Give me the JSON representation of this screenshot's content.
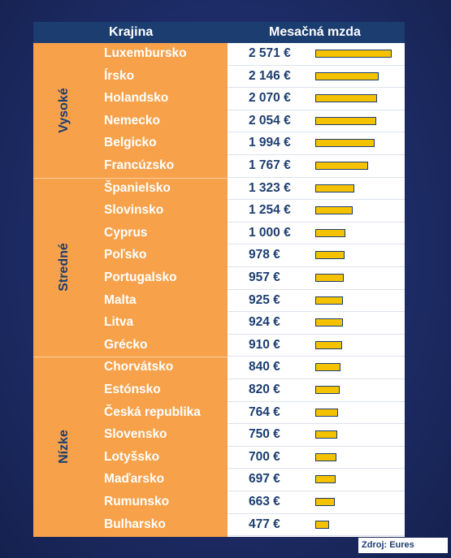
{
  "header": {
    "country_col": "Krajina",
    "wage_col": "Mesačná mzda"
  },
  "source": "Zdroj: Eures",
  "colors": {
    "header": "#1c3d70",
    "label_band": "#f7a24b",
    "bar_fill": "#f5c200",
    "bar_border": "#1c3d70"
  },
  "chart_data": {
    "type": "bar",
    "orientation": "horizontal",
    "unit": "€",
    "groups": [
      {
        "label": "Vysoké",
        "rows": [
          {
            "country": "Luxembursko",
            "wage_text": "2 571 €",
            "value": 2571
          },
          {
            "country": "Írsko",
            "wage_text": "2 146 €",
            "value": 2146
          },
          {
            "country": "Holandsko",
            "wage_text": "2 070 €",
            "value": 2070
          },
          {
            "country": "Nemecko",
            "wage_text": "2 054 €",
            "value": 2054
          },
          {
            "country": "Belgicko",
            "wage_text": "1 994 €",
            "value": 1994
          },
          {
            "country": "Francúzsko",
            "wage_text": "1 767 €",
            "value": 1767
          }
        ]
      },
      {
        "label": "Stredné",
        "rows": [
          {
            "country": "Španielsko",
            "wage_text": "1 323 €",
            "value": 1323
          },
          {
            "country": "Slovinsko",
            "wage_text": "1 254 €",
            "value": 1254
          },
          {
            "country": "Cyprus",
            "wage_text": "1 000 €",
            "value": 1000
          },
          {
            "country": "Poľsko",
            "wage_text": "978 €",
            "value": 978
          },
          {
            "country": "Portugalsko",
            "wage_text": "957 €",
            "value": 957
          },
          {
            "country": "Malta",
            "wage_text": "925 €",
            "value": 925
          },
          {
            "country": "Litva",
            "wage_text": "924 €",
            "value": 924
          },
          {
            "country": "Grécko",
            "wage_text": "910 €",
            "value": 910
          }
        ]
      },
      {
        "label": "Nízke",
        "rows": [
          {
            "country": "Chorvátsko",
            "wage_text": "840 €",
            "value": 840
          },
          {
            "country": "Estónsko",
            "wage_text": "820 €",
            "value": 820
          },
          {
            "country": "Česká republika",
            "wage_text": "764 €",
            "value": 764
          },
          {
            "country": "Slovensko",
            "wage_text": "750 €",
            "value": 750
          },
          {
            "country": "Lotyšsko",
            "wage_text": "700 €",
            "value": 700
          },
          {
            "country": "Maďarsko",
            "wage_text": "697 €",
            "value": 697
          },
          {
            "country": "Rumunsko",
            "wage_text": "663 €",
            "value": 663
          },
          {
            "country": "Bulharsko",
            "wage_text": "477 €",
            "value": 477
          }
        ]
      }
    ]
  }
}
